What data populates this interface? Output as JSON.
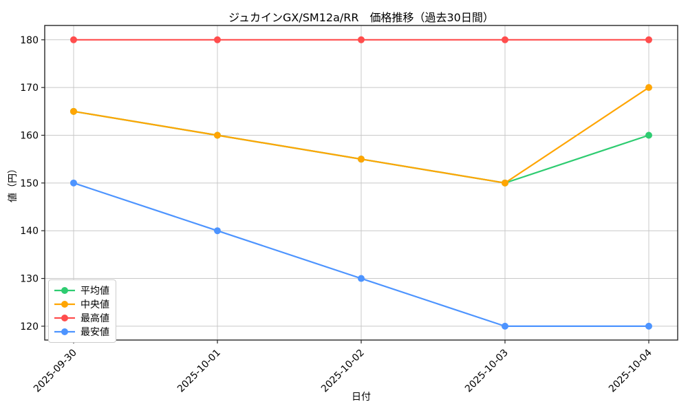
{
  "chart_data": {
    "type": "line",
    "title": "ジュカインGX/SM12a/RR　価格推移（過去30日間）",
    "xlabel": "日付",
    "ylabel": "値（円）",
    "categories": [
      "2025-09-30",
      "2025-10-01",
      "2025-10-02",
      "2025-10-03",
      "2025-10-04"
    ],
    "series": [
      {
        "key": "average",
        "name": "平均値",
        "color": "#2ecc71",
        "values": [
          165,
          160,
          155,
          150,
          160
        ]
      },
      {
        "key": "median",
        "name": "中央値",
        "color": "#ffa502",
        "values": [
          165,
          160,
          155,
          150,
          170
        ]
      },
      {
        "key": "highest",
        "name": "最高値",
        "color": "#ff4d4d",
        "values": [
          180,
          180,
          180,
          180,
          180
        ]
      },
      {
        "key": "lowest",
        "name": "最安値",
        "color": "#4d94ff",
        "values": [
          150,
          140,
          130,
          120,
          120
        ]
      }
    ],
    "yticks": [
      120,
      130,
      140,
      150,
      160,
      170,
      180
    ],
    "ylim": [
      117.1,
      183.0
    ],
    "grid": true,
    "grid_color": "#c8c8c8",
    "frame_color": "#262626",
    "legend_position": "lower-left",
    "marker": "circle"
  }
}
